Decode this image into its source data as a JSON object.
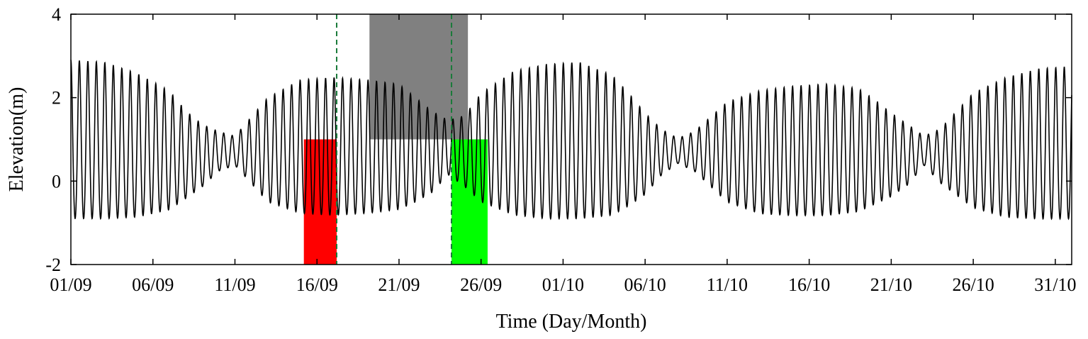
{
  "chart_data": {
    "type": "line",
    "xlabel": "Time (Day/Month)",
    "ylabel": "Elevation(m)",
    "ylim": [
      -2,
      4
    ],
    "xlim": [
      "2016-09-01",
      "2016-11-01"
    ],
    "x_ticks": [
      {
        "date": "2016-09-01",
        "label": "01/09"
      },
      {
        "date": "2016-09-06",
        "label": "06/09"
      },
      {
        "date": "2016-09-11",
        "label": "11/09"
      },
      {
        "date": "2016-09-16",
        "label": "16/09"
      },
      {
        "date": "2016-09-21",
        "label": "21/09"
      },
      {
        "date": "2016-09-26",
        "label": "26/09"
      },
      {
        "date": "2016-10-01",
        "label": "01/10"
      },
      {
        "date": "2016-10-06",
        "label": "06/10"
      },
      {
        "date": "2016-10-11",
        "label": "11/10"
      },
      {
        "date": "2016-10-16",
        "label": "16/10"
      },
      {
        "date": "2016-10-21",
        "label": "21/10"
      },
      {
        "date": "2016-10-26",
        "label": "26/10"
      },
      {
        "date": "2016-10-31",
        "label": "31/10"
      }
    ],
    "y_ticks": [
      -2,
      0,
      2,
      4
    ],
    "grid": false,
    "series": [
      {
        "color": "#000000",
        "x": [
          "2016-09-01",
          "2016-09-03",
          "2016-09-05",
          "2016-09-07",
          "2016-09-08",
          "2016-09-09",
          "2016-09-10",
          "2016-09-11",
          "2016-09-13",
          "2016-09-15",
          "2016-09-17",
          "2016-09-19",
          "2016-09-21",
          "2016-09-22",
          "2016-09-23",
          "2016-09-24",
          "2016-09-25",
          "2016-09-26",
          "2016-09-28",
          "2016-09-30",
          "2016-10-02",
          "2016-10-04",
          "2016-10-05",
          "2016-10-06",
          "2016-10-07",
          "2016-10-08",
          "2016-10-09",
          "2016-10-11",
          "2016-10-13",
          "2016-10-15",
          "2016-10-17",
          "2016-10-19",
          "2016-10-20",
          "2016-10-21",
          "2016-10-22",
          "2016-10-23",
          "2016-10-24",
          "2016-10-26",
          "2016-10-28",
          "2016-10-30",
          "2016-11-01"
        ],
        "high_water": [
          2.75,
          2.7,
          2.45,
          2.05,
          1.6,
          1.3,
          1.15,
          1.05,
          1.9,
          2.3,
          2.35,
          2.3,
          2.2,
          1.9,
          1.6,
          1.4,
          1.5,
          2.0,
          2.5,
          2.65,
          2.7,
          2.4,
          2.0,
          1.55,
          1.2,
          1.0,
          1.15,
          1.8,
          2.05,
          2.15,
          2.2,
          2.1,
          1.85,
          1.55,
          1.3,
          1.05,
          1.2,
          2.0,
          2.35,
          2.55,
          2.6
        ],
        "low_water": [
          -1.05,
          -1.05,
          -1.0,
          -0.8,
          -0.5,
          -0.2,
          0.2,
          0.35,
          -0.6,
          -0.9,
          -0.95,
          -0.9,
          -0.8,
          -0.6,
          -0.35,
          0.1,
          -0.2,
          -0.6,
          -0.95,
          -1.05,
          -1.05,
          -0.95,
          -0.7,
          -0.4,
          0.1,
          0.4,
          0.2,
          -0.6,
          -0.9,
          -0.95,
          -0.95,
          -0.85,
          -0.65,
          -0.45,
          -0.15,
          0.35,
          -0.1,
          -0.75,
          -1.0,
          -1.05,
          -1.05
        ]
      }
    ],
    "highlight_boxes": [
      {
        "name": "red-box",
        "color": "#ff0000",
        "x": [
          "2016-09-15.2",
          "2016-09-17.2"
        ],
        "y": [
          -2,
          1
        ]
      },
      {
        "name": "gray-box",
        "color": "#808080",
        "x": [
          "2016-09-19.2",
          "2016-09-25.2"
        ],
        "y": [
          1,
          4
        ]
      },
      {
        "name": "green-box",
        "color": "#00ff00",
        "x": [
          "2016-09-24.2",
          "2016-09-26.4"
        ],
        "y": [
          -2,
          1
        ]
      }
    ],
    "vlines": [
      {
        "name": "vline-left",
        "color": "#1a7a3a",
        "x": "2016-09-17.2"
      },
      {
        "name": "vline-right",
        "color": "#1a7a3a",
        "x": "2016-09-24.2"
      }
    ]
  }
}
